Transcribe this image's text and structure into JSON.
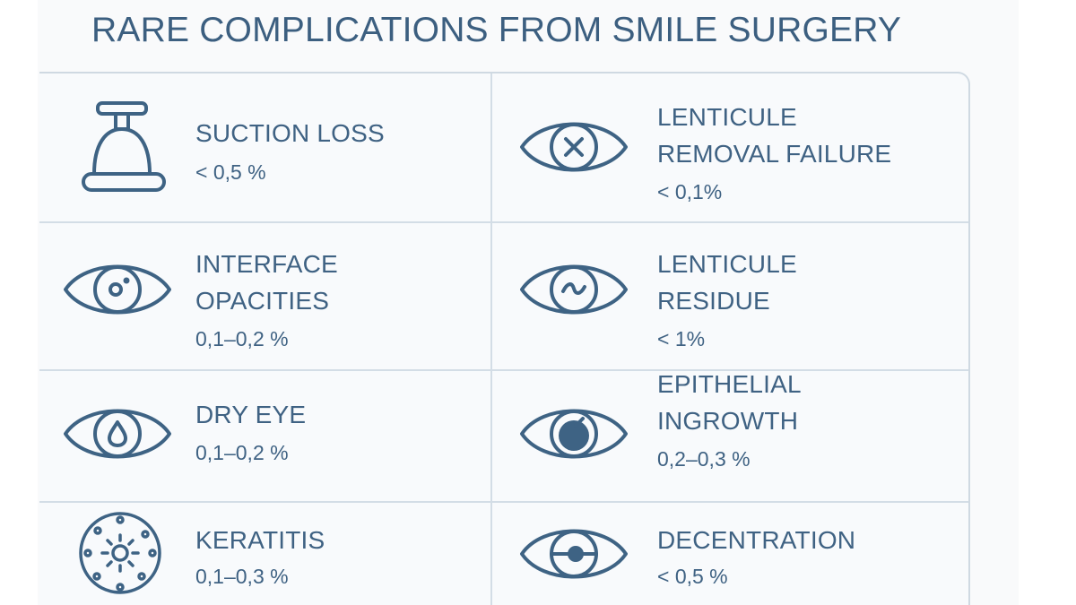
{
  "title": "RARE COMPLICATIONS FROM SMILE SURGERY",
  "complications": [
    {
      "label": "SUCTION LOSS",
      "rate": "< 0,5 %",
      "icon": "suction-cup-icon"
    },
    {
      "label": "LENTICULE\nREMOVAL FAILURE",
      "rate": "< 0,1%",
      "icon": "eye-x-icon"
    },
    {
      "label": "INTERFACE\nOPACITIES",
      "rate": "0,1–0,2 %",
      "icon": "eye-opacity-icon"
    },
    {
      "label": "LENTICULE\nRESIDUE",
      "rate": "< 1%",
      "icon": "eye-wave-icon"
    },
    {
      "label": "DRY EYE",
      "rate": "0,1–0,2 %",
      "icon": "eye-droplet-icon"
    },
    {
      "label": "EPITHELIAL\nINGROWTH",
      "rate": "0,2–0,3 %",
      "icon": "eye-ingrowth-icon"
    },
    {
      "label": "KERATITIS",
      "rate": "0,1–0,3 %",
      "icon": "microbe-icon"
    },
    {
      "label": "DECENTRATION",
      "rate": "< 0,5 %",
      "icon": "eye-decentered-icon"
    }
  ]
}
